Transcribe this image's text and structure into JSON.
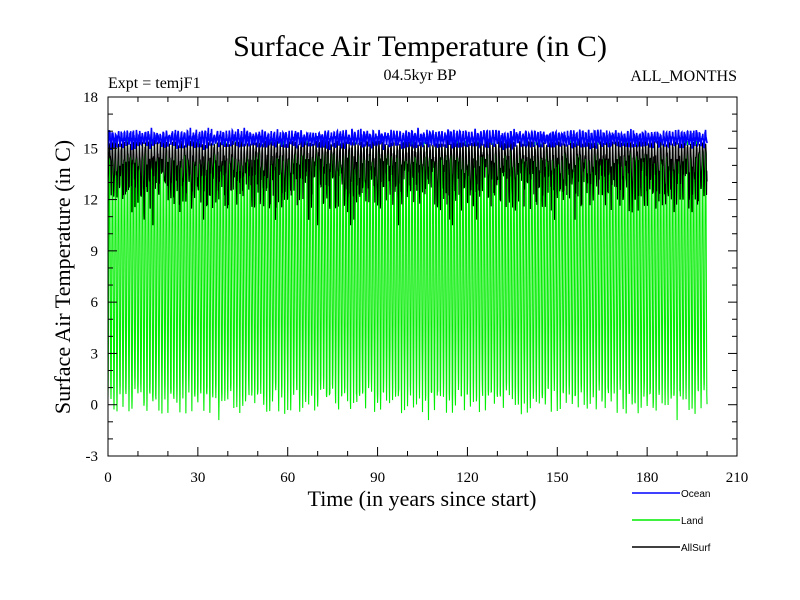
{
  "chart_data": {
    "type": "line",
    "title": "Surface Air Temperature (in C)",
    "subtitle": "04.5kyr BP",
    "experiment_label": "Expt = temjF1",
    "period_label": "ALL_MONTHS",
    "xlabel": "Time (in years since start)",
    "ylabel": "Surface Air Temperature (in C)",
    "xlim": [
      0,
      210
    ],
    "ylim": [
      -3,
      18
    ],
    "x_ticks": [
      0,
      30,
      60,
      90,
      120,
      150,
      180,
      210
    ],
    "y_ticks": [
      -3,
      0,
      3,
      6,
      9,
      12,
      15,
      18
    ],
    "x_minor_step": 10,
    "y_minor_step": 1,
    "grid": false,
    "time_range_years": [
      0,
      200
    ],
    "samples_per_year": 12,
    "legend_position": "bottom-right",
    "series": [
      {
        "name": "Land",
        "color": "#00ee00",
        "style": "monthly seasonal cycle",
        "typical_min": 0.2,
        "typical_max": 15.2,
        "extreme_min": -0.9,
        "extreme_max": 15.6
      },
      {
        "name": "AllSurf",
        "color": "#000000",
        "style": "monthly seasonal cycle",
        "typical_min": 12.8,
        "typical_max": 15.3,
        "extreme_min": 10.5,
        "extreme_max": 15.5
      },
      {
        "name": "Ocean",
        "color": "#0000ff",
        "style": "monthly seasonal cycle",
        "typical_min": 15.2,
        "typical_max": 15.9,
        "extreme_min": 14.9,
        "extreme_max": 16.2
      }
    ]
  }
}
